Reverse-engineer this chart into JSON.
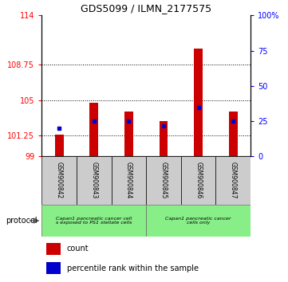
{
  "title": "GDS5099 / ILMN_2177575",
  "samples": [
    "GSM900842",
    "GSM900843",
    "GSM900844",
    "GSM900845",
    "GSM900846",
    "GSM900847"
  ],
  "counts": [
    101.3,
    104.7,
    103.8,
    102.8,
    110.5,
    103.8
  ],
  "percentiles": [
    20,
    25,
    25,
    22,
    35,
    25
  ],
  "ylim_left": [
    99,
    114
  ],
  "ylim_right": [
    0,
    100
  ],
  "yticks_left": [
    99,
    101.25,
    105,
    108.75,
    114
  ],
  "yticks_right": [
    0,
    25,
    50,
    75,
    100
  ],
  "yticklabels_left": [
    "99",
    "101.25",
    "105",
    "108.75",
    "114"
  ],
  "yticklabels_right": [
    "0",
    "25",
    "50",
    "75",
    "100%"
  ],
  "bar_color": "#cc0000",
  "percentile_color": "#0000cc",
  "bar_bottom": 99,
  "hlines": [
    101.25,
    105,
    108.75
  ],
  "bar_width": 0.25,
  "group1_text": "Capan1 pancreatic cancer cell\ns exposed to PS1 stellate cells",
  "group2_text": "Capan1 pancreatic cancer\ncells only",
  "legend_count_label": "count",
  "legend_percentile_label": "percentile rank within the sample"
}
